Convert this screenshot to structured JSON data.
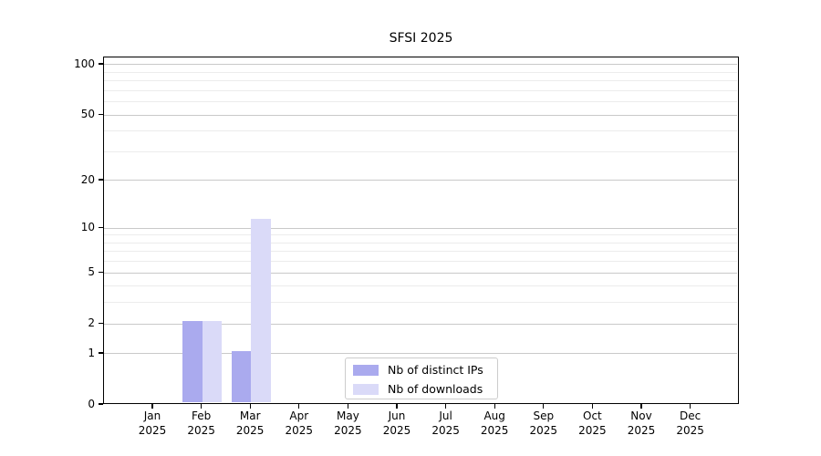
{
  "chart_data": {
    "type": "bar",
    "title": "SFSI 2025",
    "scale": "log1p",
    "grid": true,
    "ylim": [
      0,
      111
    ],
    "y_ticks": [
      0,
      1,
      2,
      5,
      10,
      20,
      50,
      100
    ],
    "y_minor_gridlines": [
      3,
      4,
      6,
      7,
      8,
      9,
      30,
      40,
      60,
      70,
      80,
      90
    ],
    "x_tick_labels": [
      {
        "label": "Jan",
        "sub": "2025"
      },
      {
        "label": "Feb",
        "sub": "2025"
      },
      {
        "label": "Mar",
        "sub": "2025"
      },
      {
        "label": "Apr",
        "sub": "2025"
      },
      {
        "label": "May",
        "sub": "2025"
      },
      {
        "label": "Jun",
        "sub": "2025"
      },
      {
        "label": "Jul",
        "sub": "2025"
      },
      {
        "label": "Aug",
        "sub": "2025"
      },
      {
        "label": "Sep",
        "sub": "2025"
      },
      {
        "label": "Oct",
        "sub": "2025"
      },
      {
        "label": "Nov",
        "sub": "2025"
      },
      {
        "label": "Dec",
        "sub": "2025"
      }
    ],
    "series": [
      {
        "name": "Nb of distinct IPs",
        "color": "#aaaaee",
        "values": [
          0,
          2,
          1,
          0,
          0,
          0,
          0,
          0,
          0,
          0,
          0,
          0
        ]
      },
      {
        "name": "Nb of downloads",
        "color": "#dadaf8",
        "values": [
          0,
          2,
          11,
          0,
          0,
          0,
          0,
          0,
          0,
          0,
          0,
          0
        ]
      }
    ],
    "legend_position": "lower center"
  },
  "colors": {
    "major_grid": "#c9c9c9",
    "minor_grid": "#ececec",
    "axis": "#000000",
    "legend_border": "#cccccc",
    "background": "#ffffff"
  }
}
